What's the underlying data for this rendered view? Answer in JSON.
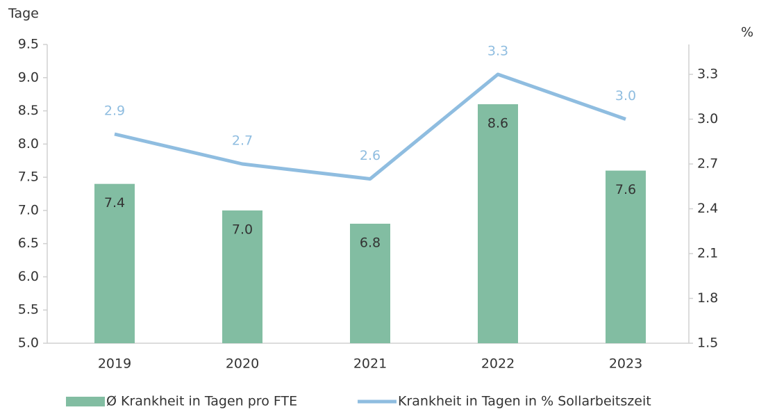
{
  "chart_data": {
    "type": "bar_line",
    "y_label": "Tage",
    "y2_label": "%",
    "categories": [
      "2019",
      "2020",
      "2021",
      "2022",
      "2023"
    ],
    "series": [
      {
        "name": "Ø Krankheit in Tagen pro FTE",
        "type": "bar",
        "color": "#82bda2",
        "values": [
          7.4,
          7.0,
          6.8,
          8.6,
          7.6
        ],
        "value_labels": [
          "7.4",
          "7.0",
          "6.8",
          "8.6",
          "7.6"
        ]
      },
      {
        "name": "Krankheit in Tagen in % Sollarbeitszeit",
        "type": "line",
        "axis": "y2",
        "color": "#8fbde0",
        "values": [
          2.9,
          2.7,
          2.6,
          3.3,
          3.0
        ],
        "value_labels": [
          "2.9",
          "2.7",
          "2.6",
          "3.3",
          "3.0"
        ]
      }
    ],
    "ylim": [
      5,
      9.5
    ],
    "yticks": [
      {
        "value": 5,
        "label": "5.0"
      },
      5.5,
      {
        "value": 6,
        "label": "6.0"
      },
      6.5,
      {
        "value": 7,
        "label": "7.0"
      },
      7.5,
      {
        "value": 8,
        "label": "8.0"
      },
      8.5,
      {
        "value": 9,
        "label": "9.0"
      },
      9.5
    ],
    "y2lim": [
      1.5,
      3.5
    ],
    "y2ticks": [
      1.5,
      1.8,
      2.1,
      2.4,
      2.7,
      {
        "value": 3,
        "label": "3.0"
      },
      3.3
    ],
    "legend": "bottom"
  }
}
